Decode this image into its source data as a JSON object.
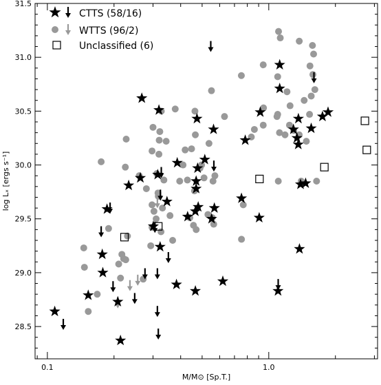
{
  "chart_data": {
    "type": "scatter",
    "xlabel": "M/M⊙ [Sp.T.]",
    "ylabel": "log Lₓ [ergs s⁻¹]",
    "xscale": "log",
    "xlim": [
      0.088,
      3.1
    ],
    "ylim": [
      28.2,
      31.5
    ],
    "x_ticks": [
      {
        "value": 0.1,
        "label": "0.1"
      },
      {
        "value": 1.0,
        "label": "1.0"
      }
    ],
    "y_ticks": [
      {
        "value": 28.5,
        "label": "28.5"
      },
      {
        "value": 29.0,
        "label": "29.0"
      },
      {
        "value": 29.5,
        "label": "29.5"
      },
      {
        "value": 30.0,
        "label": "30.0"
      },
      {
        "value": 30.5,
        "label": "30.5"
      },
      {
        "value": 31.0,
        "label": "31.0"
      },
      {
        "value": 31.5,
        "label": "31.5"
      }
    ],
    "grid": false,
    "legend_position": "top-left",
    "series": [
      {
        "name": "CTTS (58/16)",
        "marker": "star",
        "color": "#000000",
        "points": [
          [
            0.108,
            28.64
          ],
          [
            0.153,
            28.79
          ],
          [
            0.178,
            29.0
          ],
          [
            0.177,
            29.17
          ],
          [
            0.186,
            29.59
          ],
          [
            0.208,
            28.73
          ],
          [
            0.214,
            28.37
          ],
          [
            0.233,
            29.81
          ],
          [
            0.263,
            29.88
          ],
          [
            0.267,
            30.62
          ],
          [
            0.301,
            29.43
          ],
          [
            0.315,
            29.91
          ],
          [
            0.319,
            30.51
          ],
          [
            0.323,
            29.24
          ],
          [
            0.347,
            29.66
          ],
          [
            0.383,
            28.89
          ],
          [
            0.386,
            30.02
          ],
          [
            0.43,
            29.52
          ],
          [
            0.466,
            28.83
          ],
          [
            0.466,
            29.57
          ],
          [
            0.47,
            29.78
          ],
          [
            0.47,
            29.85
          ],
          [
            0.474,
            30.43
          ],
          [
            0.477,
            29.97
          ],
          [
            0.48,
            29.61
          ],
          [
            0.514,
            30.05
          ],
          [
            0.552,
            29.5
          ],
          [
            0.563,
            30.33
          ],
          [
            0.568,
            29.6
          ],
          [
            0.62,
            28.92
          ],
          [
            0.753,
            29.69
          ],
          [
            0.783,
            30.23
          ],
          [
            0.905,
            29.51
          ],
          [
            0.915,
            30.49
          ],
          [
            1.101,
            28.83
          ],
          [
            1.12,
            30.93
          ],
          [
            1.12,
            30.71
          ],
          [
            1.293,
            30.33
          ],
          [
            1.341,
            30.25
          ],
          [
            1.359,
            30.19
          ],
          [
            1.361,
            30.43
          ],
          [
            1.376,
            29.22
          ],
          [
            1.391,
            29.82
          ],
          [
            1.467,
            29.83
          ],
          [
            1.555,
            30.34
          ],
          [
            1.748,
            30.45
          ],
          [
            1.852,
            30.49
          ]
        ]
      },
      {
        "name": "CTTS upper limits",
        "marker": "arrow",
        "color": "#000000",
        "points": [
          [
            0.118,
            28.52
          ],
          [
            0.192,
            29.6
          ],
          [
            0.175,
            29.38
          ],
          [
            0.198,
            28.87
          ],
          [
            0.248,
            28.76
          ],
          [
            0.276,
            28.99
          ],
          [
            0.306,
            29.42
          ],
          [
            0.314,
            28.99
          ],
          [
            0.314,
            28.64
          ],
          [
            0.317,
            28.43
          ],
          [
            0.352,
            29.14
          ],
          [
            0.327,
            29.93
          ],
          [
            0.324,
            29.72
          ],
          [
            0.547,
            31.1
          ],
          [
            0.565,
            29.99
          ],
          [
            1.103,
            28.89
          ],
          [
            1.6,
            30.81
          ]
        ]
      },
      {
        "name": "WTTS (96/2)",
        "marker": "circle",
        "color": "#999999",
        "points": [
          [
            0.146,
            29.23
          ],
          [
            0.147,
            29.05
          ],
          [
            0.153,
            28.64
          ],
          [
            0.168,
            28.8
          ],
          [
            0.175,
            30.03
          ],
          [
            0.189,
            29.41
          ],
          [
            0.21,
            29.08
          ],
          [
            0.214,
            28.95
          ],
          [
            0.217,
            29.17
          ],
          [
            0.221,
            29.13
          ],
          [
            0.226,
            29.12
          ],
          [
            0.225,
            29.98
          ],
          [
            0.227,
            30.24
          ],
          [
            0.23,
            29.34
          ],
          [
            0.26,
            29.9
          ],
          [
            0.271,
            28.94
          ],
          [
            0.28,
            29.78
          ],
          [
            0.293,
            29.25
          ],
          [
            0.297,
            29.42
          ],
          [
            0.297,
            29.63
          ],
          [
            0.297,
            30.13
          ],
          [
            0.3,
            30.35
          ],
          [
            0.303,
            29.57
          ],
          [
            0.31,
            29.5
          ],
          [
            0.312,
            29.92
          ],
          [
            0.317,
            29.71
          ],
          [
            0.316,
            29.74
          ],
          [
            0.319,
            30.1
          ],
          [
            0.32,
            30.23
          ],
          [
            0.322,
            30.31
          ],
          [
            0.326,
            29.38
          ],
          [
            0.327,
            30.5
          ],
          [
            0.331,
            29.6
          ],
          [
            0.336,
            29.86
          ],
          [
            0.344,
            30.22
          ],
          [
            0.358,
            29.53
          ],
          [
            0.368,
            29.3
          ],
          [
            0.378,
            30.52
          ],
          [
            0.396,
            29.85
          ],
          [
            0.41,
            30.0
          ],
          [
            0.419,
            30.14
          ],
          [
            0.429,
            29.86
          ],
          [
            0.44,
            29.51
          ],
          [
            0.448,
            30.15
          ],
          [
            0.457,
            29.44
          ],
          [
            0.462,
            29.76
          ],
          [
            0.464,
            30.5
          ],
          [
            0.466,
            30.28
          ],
          [
            0.47,
            29.4
          ],
          [
            0.489,
            29.97
          ],
          [
            0.497,
            30.0
          ],
          [
            0.51,
            29.88
          ],
          [
            0.531,
            29.54
          ],
          [
            0.537,
            30.2
          ],
          [
            0.551,
            30.69
          ],
          [
            0.556,
            29.51
          ],
          [
            0.56,
            29.85
          ],
          [
            0.564,
            29.45
          ],
          [
            0.571,
            29.9
          ],
          [
            0.631,
            30.45
          ],
          [
            0.752,
            30.83
          ],
          [
            0.753,
            29.31
          ],
          [
            0.767,
            29.63
          ],
          [
            0.834,
            30.26
          ],
          [
            0.861,
            30.33
          ],
          [
            0.944,
            30.37
          ],
          [
            0.944,
            30.93
          ],
          [
            0.947,
            30.53
          ],
          [
            1.089,
            30.45
          ],
          [
            1.097,
            30.47
          ],
          [
            1.097,
            30.82
          ],
          [
            1.107,
            31.24
          ],
          [
            1.104,
            29.85
          ],
          [
            1.118,
            30.3
          ],
          [
            1.127,
            31.18
          ],
          [
            1.184,
            30.28
          ],
          [
            1.209,
            30.68
          ],
          [
            1.24,
            30.37
          ],
          [
            1.248,
            30.55
          ],
          [
            1.297,
            30.32
          ],
          [
            1.373,
            31.15
          ],
          [
            1.372,
            30.28
          ],
          [
            1.401,
            29.85
          ],
          [
            1.445,
            30.6
          ],
          [
            1.478,
            30.22
          ],
          [
            1.528,
            30.47
          ],
          [
            1.535,
            30.92
          ],
          [
            1.555,
            30.64
          ],
          [
            1.575,
            31.11
          ],
          [
            1.582,
            30.84
          ],
          [
            1.594,
            31.03
          ],
          [
            1.615,
            30.7
          ],
          [
            1.644,
            29.85
          ]
        ]
      },
      {
        "name": "WTTS upper limits",
        "marker": "arrow",
        "color": "#999999",
        "points": [
          [
            0.208,
            28.72
          ],
          [
            0.236,
            28.88
          ],
          [
            0.256,
            28.93
          ],
          [
            0.314,
            29.65
          ]
        ]
      },
      {
        "name": "Unclassified (6)",
        "marker": "square",
        "color": "#000000",
        "points": [
          [
            0.223,
            29.33
          ],
          [
            0.317,
            29.43
          ],
          [
            0.908,
            29.87
          ],
          [
            1.783,
            29.98
          ],
          [
            2.718,
            30.41
          ],
          [
            2.771,
            30.14
          ]
        ]
      }
    ],
    "legend": [
      {
        "key": "ctts",
        "label": "CTTS (58/16)"
      },
      {
        "key": "wtts",
        "label": "WTTS (96/2)"
      },
      {
        "key": "unclassified",
        "label": "Unclassified (6)"
      }
    ]
  }
}
